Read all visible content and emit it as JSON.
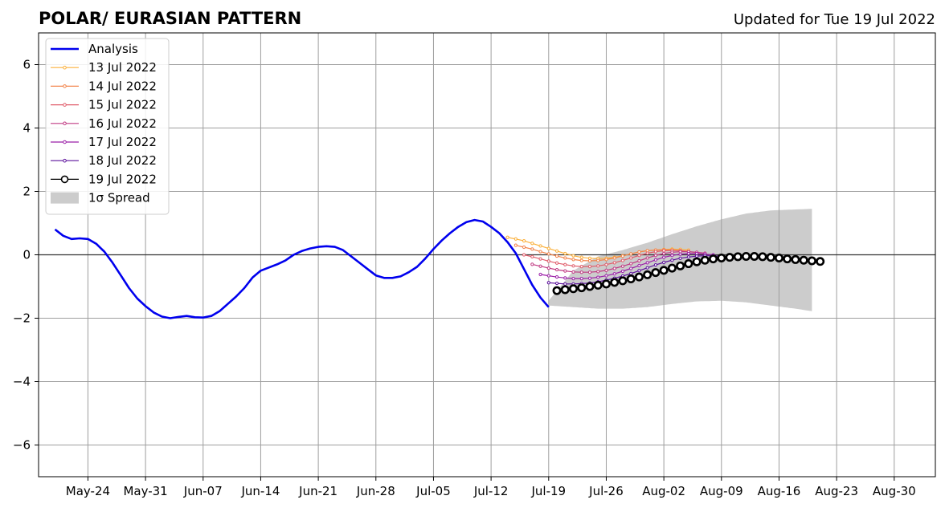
{
  "chart_data": {
    "type": "line",
    "title": "POLAR/ EURASIAN  PATTERN",
    "subtitle": "Updated for Tue 19 Jul 2022",
    "xlabel": "",
    "ylabel": "",
    "xlim": [
      "2022-05-18",
      "2022-09-04"
    ],
    "ylim": [
      -7,
      7
    ],
    "x_ticks": [
      "May-24",
      "May-31",
      "Jun-07",
      "Jun-14",
      "Jun-21",
      "Jun-28",
      "Jul-05",
      "Jul-12",
      "Jul-19",
      "Jul-26",
      "Aug-02",
      "Aug-09",
      "Aug-16",
      "Aug-23",
      "Aug-30"
    ],
    "x_tick_dates": [
      "2022-05-24",
      "2022-05-31",
      "2022-06-07",
      "2022-06-14",
      "2022-06-21",
      "2022-06-28",
      "2022-07-05",
      "2022-07-12",
      "2022-07-19",
      "2022-07-26",
      "2022-08-02",
      "2022-08-09",
      "2022-08-16",
      "2022-08-23",
      "2022-08-30"
    ],
    "y_ticks": [
      -6,
      -4,
      -2,
      0,
      2,
      4,
      6
    ],
    "y_tick_labels": [
      "−6",
      "−4",
      "−2",
      "0",
      "2",
      "4",
      "6"
    ],
    "grid": true,
    "legend_position": "top-left",
    "analysis": {
      "name": "Analysis",
      "color": "#0000ee",
      "start_date": "2022-05-20",
      "values": [
        0.8,
        0.6,
        0.5,
        0.52,
        0.5,
        0.35,
        0.1,
        -0.25,
        -0.65,
        -1.05,
        -1.38,
        -1.62,
        -1.82,
        -1.95,
        -2.0,
        -1.96,
        -1.93,
        -1.97,
        -1.98,
        -1.93,
        -1.78,
        -1.55,
        -1.32,
        -1.05,
        -0.72,
        -0.5,
        -0.4,
        -0.3,
        -0.18,
        0.0,
        0.12,
        0.2,
        0.25,
        0.27,
        0.25,
        0.15,
        -0.05,
        -0.25,
        -0.45,
        -0.65,
        -0.73,
        -0.73,
        -0.68,
        -0.55,
        -0.38,
        -0.12,
        0.18,
        0.45,
        0.68,
        0.88,
        1.03,
        1.1,
        1.05,
        0.88,
        0.68,
        0.4,
        0.05,
        -0.45,
        -0.95,
        -1.35,
        -1.65
      ]
    },
    "forecasts": [
      {
        "name": "13 Jul 2022",
        "color": "#fbb03b",
        "start_date": "2022-07-14",
        "values": [
          0.55,
          0.5,
          0.44,
          0.36,
          0.28,
          0.2,
          0.12,
          0.04,
          -0.03,
          -0.08,
          -0.11,
          -0.12,
          -0.11,
          -0.08,
          -0.03,
          0.03,
          0.09,
          0.13,
          0.15,
          0.17,
          0.18,
          0.17,
          0.15
        ]
      },
      {
        "name": "14 Jul 2022",
        "color": "#f2844b",
        "start_date": "2022-07-15",
        "values": [
          0.3,
          0.24,
          0.18,
          0.1,
          0.03,
          -0.04,
          -0.1,
          -0.15,
          -0.18,
          -0.19,
          -0.18,
          -0.15,
          -0.1,
          -0.04,
          0.03,
          0.09,
          0.13,
          0.15,
          0.16,
          0.15,
          0.13,
          0.11
        ]
      },
      {
        "name": "15 Jul 2022",
        "color": "#e05c6a",
        "start_date": "2022-07-16",
        "values": [
          0.0,
          -0.06,
          -0.13,
          -0.2,
          -0.26,
          -0.31,
          -0.35,
          -0.37,
          -0.37,
          -0.35,
          -0.31,
          -0.25,
          -0.18,
          -0.1,
          -0.02,
          0.05,
          0.1,
          0.13,
          0.14,
          0.13,
          0.1,
          0.07
        ]
      },
      {
        "name": "16 Jul 2022",
        "color": "#c03a83",
        "start_date": "2022-07-17",
        "values": [
          -0.3,
          -0.36,
          -0.42,
          -0.47,
          -0.51,
          -0.54,
          -0.55,
          -0.55,
          -0.53,
          -0.49,
          -0.43,
          -0.36,
          -0.28,
          -0.19,
          -0.1,
          -0.02,
          0.04,
          0.08,
          0.1,
          0.1,
          0.08,
          0.05
        ]
      },
      {
        "name": "17 Jul 2022",
        "color": "#9b1fa8",
        "start_date": "2022-07-18",
        "values": [
          -0.62,
          -0.66,
          -0.7,
          -0.73,
          -0.75,
          -0.75,
          -0.74,
          -0.71,
          -0.66,
          -0.6,
          -0.52,
          -0.43,
          -0.34,
          -0.25,
          -0.16,
          -0.08,
          -0.02,
          0.02,
          0.04,
          0.04,
          0.02,
          0.0
        ]
      },
      {
        "name": "18 Jul 2022",
        "color": "#5c119c",
        "start_date": "2022-07-19",
        "values": [
          -0.88,
          -0.9,
          -0.92,
          -0.92,
          -0.91,
          -0.89,
          -0.85,
          -0.8,
          -0.74,
          -0.67,
          -0.59,
          -0.5,
          -0.41,
          -0.32,
          -0.24,
          -0.17,
          -0.11,
          -0.07,
          -0.04,
          -0.03,
          -0.03,
          -0.04
        ]
      },
      {
        "name": "19 Jul 2022",
        "color": "#000000",
        "start_date": "2022-07-20",
        "values": [
          -1.13,
          -1.1,
          -1.07,
          -1.04,
          -1.0,
          -0.96,
          -0.92,
          -0.87,
          -0.82,
          -0.76,
          -0.7,
          -0.63,
          -0.56,
          -0.49,
          -0.42,
          -0.35,
          -0.28,
          -0.22,
          -0.17,
          -0.13,
          -0.1,
          -0.08,
          -0.06,
          -0.05,
          -0.05,
          -0.06,
          -0.08,
          -0.1,
          -0.13,
          -0.15,
          -0.17,
          -0.19,
          -0.21
        ]
      }
    ],
    "spread": {
      "name": "1σ Spread",
      "color": "#cccccc",
      "x": [
        "2022-07-19",
        "2022-07-22",
        "2022-07-25",
        "2022-07-28",
        "2022-07-31",
        "2022-08-03",
        "2022-08-06",
        "2022-08-09",
        "2022-08-12",
        "2022-08-15",
        "2022-08-18",
        "2022-08-20"
      ],
      "upper": [
        -1.45,
        -0.5,
        -0.05,
        0.15,
        0.38,
        0.65,
        0.9,
        1.12,
        1.3,
        1.4,
        1.43,
        1.45
      ],
      "lower": [
        -1.6,
        -1.65,
        -1.7,
        -1.7,
        -1.65,
        -1.55,
        -1.47,
        -1.45,
        -1.5,
        -1.6,
        -1.7,
        -1.78
      ]
    }
  }
}
